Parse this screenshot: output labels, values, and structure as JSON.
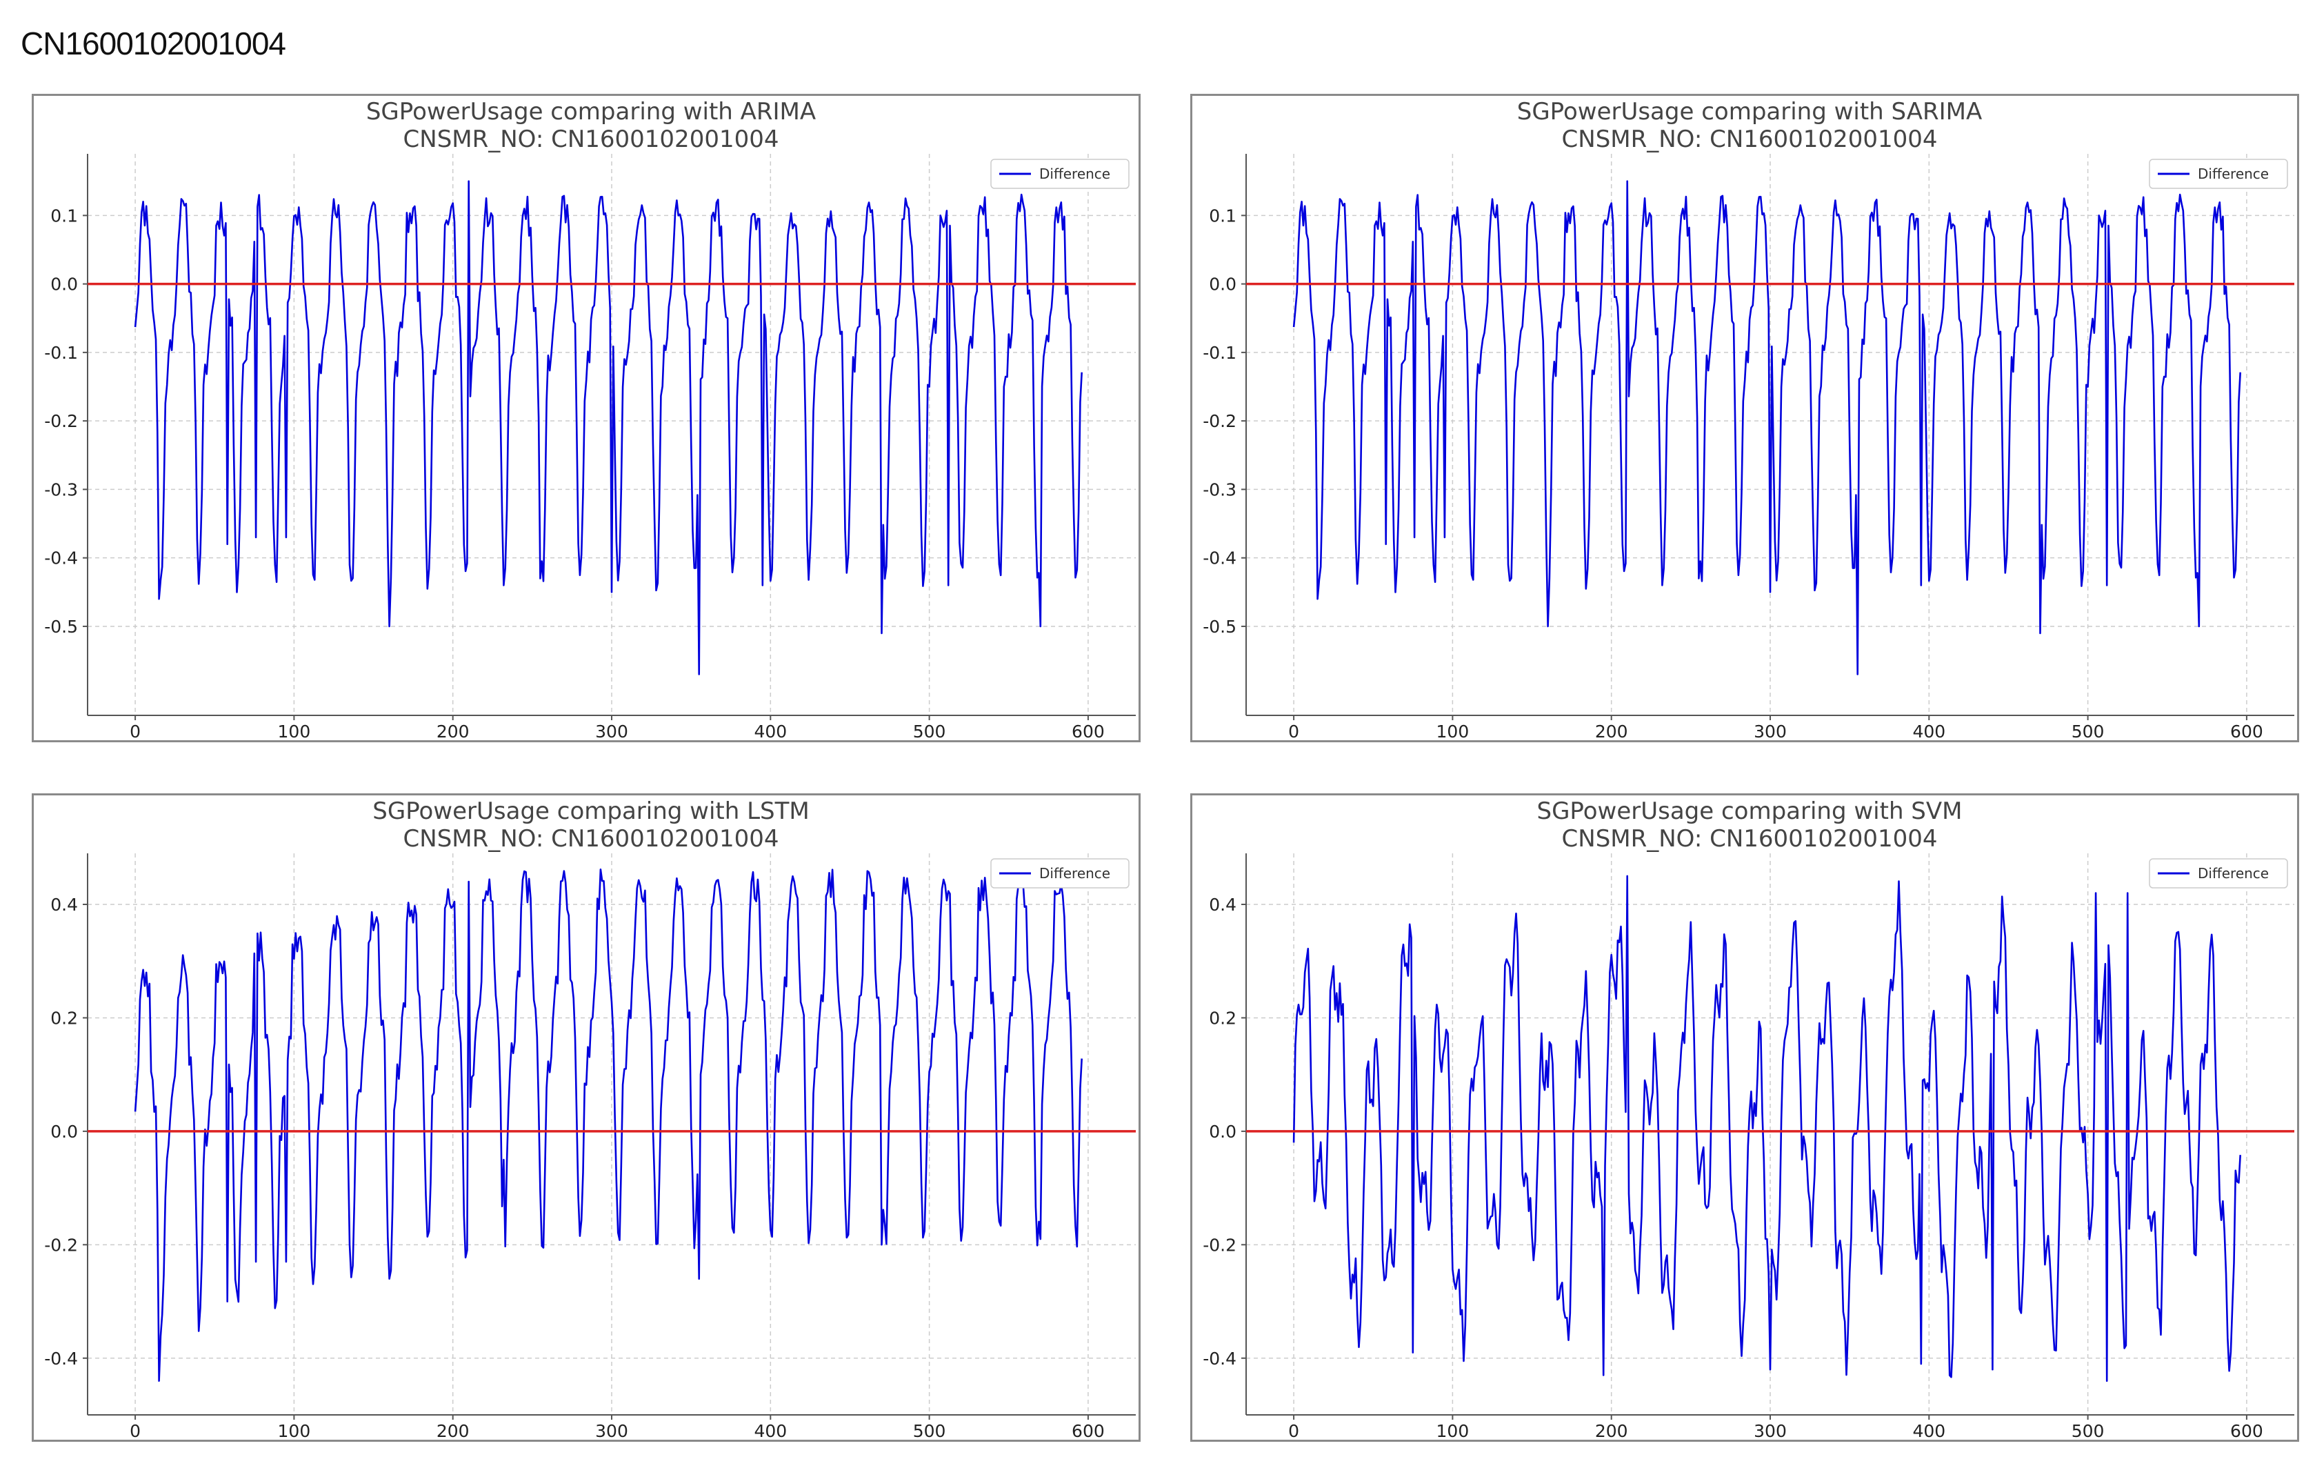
{
  "page_heading": "CN1600102001004",
  "colors": {
    "line": "#0000dd",
    "zero_line": "#dd2222",
    "grid": "#cccccc",
    "frame": "#8a8a8a"
  },
  "chart_data": [
    {
      "type": "line",
      "title": "SGPowerUsage comparing with ARIMA",
      "subtitle": "CNSMR_NO: CN1600102001004",
      "xlabel": "",
      "ylabel": "",
      "xlim": [
        -30,
        630
      ],
      "ylim": [
        -0.63,
        0.19
      ],
      "xticks": [
        0,
        100,
        200,
        300,
        400,
        500,
        600
      ],
      "yticks": [
        0.1,
        0.0,
        -0.1,
        -0.2,
        -0.3,
        -0.4,
        -0.5
      ],
      "ytick_labels": [
        "0.1",
        "0.0",
        "-0.1",
        "-0.2",
        "-0.3",
        "-0.4",
        "-0.5"
      ],
      "hline": 0.0,
      "grid": true,
      "legend": {
        "position": "top-right",
        "entries": [
          "Difference"
        ]
      },
      "series": [
        {
          "name": "Difference",
          "x_start": 0,
          "x_step": 1,
          "length": 597,
          "base": -0.05,
          "amp": 0.13,
          "dip_depth": 0.3,
          "noise": 0.025,
          "seed": 11,
          "spikes": [
            [
              15,
              -0.46
            ],
            [
              58,
              -0.38
            ],
            [
              76,
              -0.37
            ],
            [
              95,
              -0.37
            ],
            [
              135,
              -0.41
            ],
            [
              160,
              -0.5
            ],
            [
              210,
              0.15
            ],
            [
              232,
              -0.44
            ],
            [
              255,
              -0.43
            ],
            [
              300,
              -0.45
            ],
            [
              355,
              -0.57
            ],
            [
              395,
              -0.44
            ],
            [
              470,
              -0.51
            ],
            [
              512,
              -0.44
            ],
            [
              570,
              -0.5
            ],
            [
              582,
              0.11
            ]
          ]
        }
      ]
    },
    {
      "type": "line",
      "title": "SGPowerUsage comparing with SARIMA",
      "subtitle": "CNSMR_NO: CN1600102001004",
      "xlabel": "",
      "ylabel": "",
      "xlim": [
        -30,
        630
      ],
      "ylim": [
        -0.63,
        0.19
      ],
      "xticks": [
        0,
        100,
        200,
        300,
        400,
        500,
        600
      ],
      "yticks": [
        0.1,
        0.0,
        -0.1,
        -0.2,
        -0.3,
        -0.4,
        -0.5
      ],
      "ytick_labels": [
        "0.1",
        "0.0",
        "-0.1",
        "-0.2",
        "-0.3",
        "-0.4",
        "-0.5"
      ],
      "hline": 0.0,
      "grid": true,
      "legend": {
        "position": "top-right",
        "entries": [
          "Difference"
        ]
      },
      "series": [
        {
          "name": "Difference",
          "x_start": 0,
          "x_step": 1,
          "length": 597,
          "base": -0.05,
          "amp": 0.13,
          "dip_depth": 0.3,
          "noise": 0.025,
          "seed": 11,
          "spikes": [
            [
              15,
              -0.46
            ],
            [
              58,
              -0.38
            ],
            [
              76,
              -0.37
            ],
            [
              95,
              -0.37
            ],
            [
              135,
              -0.41
            ],
            [
              160,
              -0.5
            ],
            [
              210,
              0.15
            ],
            [
              232,
              -0.44
            ],
            [
              255,
              -0.43
            ],
            [
              300,
              -0.45
            ],
            [
              355,
              -0.57
            ],
            [
              395,
              -0.44
            ],
            [
              470,
              -0.51
            ],
            [
              512,
              -0.44
            ],
            [
              570,
              -0.5
            ],
            [
              582,
              0.11
            ]
          ]
        }
      ]
    },
    {
      "type": "line",
      "title": "SGPowerUsage comparing with LSTM",
      "subtitle": "CNSMR_NO: CN1600102001004",
      "xlabel": "",
      "ylabel": "",
      "xlim": [
        -30,
        630
      ],
      "ylim": [
        -0.5,
        0.49
      ],
      "xticks": [
        0,
        100,
        200,
        300,
        400,
        500,
        600
      ],
      "yticks": [
        0.4,
        0.2,
        0.0,
        -0.2,
        -0.4
      ],
      "ytick_labels": [
        "0.4",
        "0.2",
        "0.0",
        "-0.2",
        "-0.4"
      ],
      "hline": 0.0,
      "grid": true,
      "legend": {
        "position": "top-right",
        "entries": [
          "Difference"
        ]
      },
      "series": [
        {
          "name": "Difference",
          "x_start": 0,
          "x_step": 1,
          "length": 597,
          "base": 0.05,
          "amp": 0.18,
          "dip_depth": 0.3,
          "noise": 0.03,
          "seed": 23,
          "trend": 0.17,
          "spikes": [
            [
              15,
              -0.44
            ],
            [
              58,
              -0.3
            ],
            [
              76,
              -0.23
            ],
            [
              95,
              -0.23
            ],
            [
              135,
              -0.2
            ],
            [
              160,
              -0.26
            ],
            [
              210,
              0.44
            ],
            [
              232,
              -0.05
            ],
            [
              355,
              -0.26
            ],
            [
              470,
              -0.2
            ],
            [
              570,
              -0.19
            ],
            [
              582,
              0.42
            ]
          ]
        }
      ]
    },
    {
      "type": "line",
      "title": "SGPowerUsage comparing with SVM",
      "subtitle": "CNSMR_NO: CN1600102001004",
      "xlabel": "",
      "ylabel": "",
      "xlim": [
        -30,
        630
      ],
      "ylim": [
        -0.5,
        0.49
      ],
      "xticks": [
        0,
        100,
        200,
        300,
        400,
        500,
        600
      ],
      "yticks": [
        0.4,
        0.2,
        0.0,
        -0.2,
        -0.4
      ],
      "ytick_labels": [
        "0.4",
        "0.2",
        "0.0",
        "-0.2",
        "-0.4"
      ],
      "hline": 0.0,
      "grid": true,
      "legend": {
        "position": "top-right",
        "entries": [
          "Difference"
        ]
      },
      "series": [
        {
          "name": "Difference",
          "x_start": 0,
          "x_step": 1,
          "length": 597,
          "base": 0.0,
          "amp": 0.24,
          "dip_depth": 0.1,
          "noise": 0.04,
          "seed": 37,
          "oscillating": true,
          "spikes": [
            [
              75,
              -0.39
            ],
            [
              195,
              -0.43
            ],
            [
              210,
              0.45
            ],
            [
              300,
              -0.42
            ],
            [
              395,
              -0.41
            ],
            [
              440,
              -0.42
            ],
            [
              505,
              0.42
            ],
            [
              512,
              -0.44
            ],
            [
              525,
              0.42
            ]
          ]
        }
      ]
    }
  ]
}
